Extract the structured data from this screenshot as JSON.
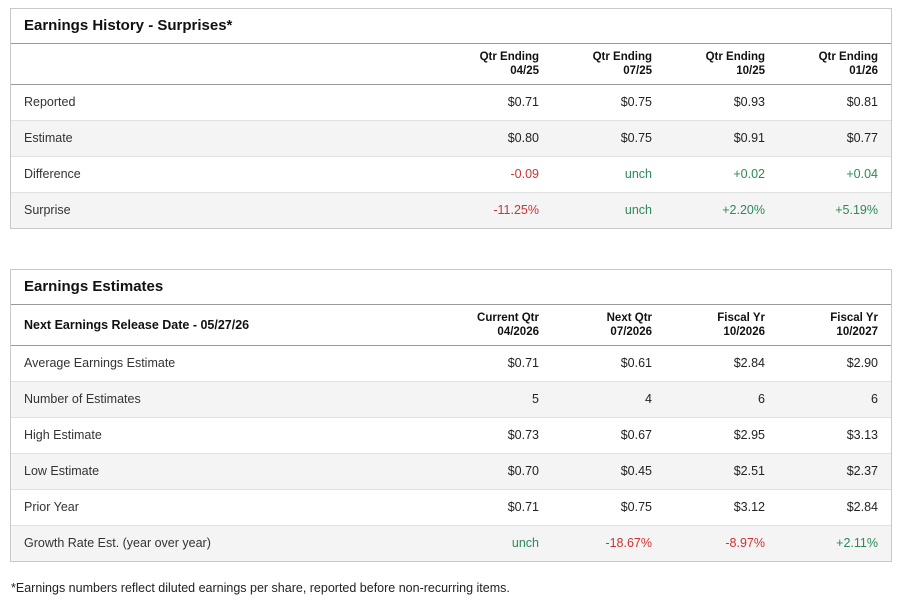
{
  "colors": {
    "positive": "#2e8857",
    "negative": "#cc3333"
  },
  "earnings_history": {
    "title": "Earnings History - Surprises*",
    "columns": [
      {
        "line1": "Qtr Ending",
        "line2": "04/25"
      },
      {
        "line1": "Qtr Ending",
        "line2": "07/25"
      },
      {
        "line1": "Qtr Ending",
        "line2": "10/25"
      },
      {
        "line1": "Qtr Ending",
        "line2": "01/26"
      }
    ],
    "rows": [
      {
        "label": "Reported",
        "values": [
          {
            "text": "$0.71",
            "trend": "none"
          },
          {
            "text": "$0.75",
            "trend": "none"
          },
          {
            "text": "$0.93",
            "trend": "none"
          },
          {
            "text": "$0.81",
            "trend": "none"
          }
        ]
      },
      {
        "label": "Estimate",
        "values": [
          {
            "text": "$0.80",
            "trend": "none"
          },
          {
            "text": "$0.75",
            "trend": "none"
          },
          {
            "text": "$0.91",
            "trend": "none"
          },
          {
            "text": "$0.77",
            "trend": "none"
          }
        ]
      },
      {
        "label": "Difference",
        "values": [
          {
            "text": "-0.09",
            "trend": "down"
          },
          {
            "text": "unch",
            "trend": "up"
          },
          {
            "text": "+0.02",
            "trend": "up"
          },
          {
            "text": "+0.04",
            "trend": "up"
          }
        ]
      },
      {
        "label": "Surprise",
        "values": [
          {
            "text": "-11.25%",
            "trend": "down"
          },
          {
            "text": "unch",
            "trend": "up"
          },
          {
            "text": "+2.20%",
            "trend": "up"
          },
          {
            "text": "+5.19%",
            "trend": "up"
          }
        ]
      }
    ]
  },
  "earnings_estimates": {
    "title": "Earnings Estimates",
    "release_date_label": "Next Earnings Release Date - 05/27/26",
    "columns": [
      {
        "line1": "Current Qtr",
        "line2": "04/2026"
      },
      {
        "line1": "Next Qtr",
        "line2": "07/2026"
      },
      {
        "line1": "Fiscal Yr",
        "line2": "10/2026"
      },
      {
        "line1": "Fiscal Yr",
        "line2": "10/2027"
      }
    ],
    "rows": [
      {
        "label": "Average Earnings Estimate",
        "values": [
          {
            "text": "$0.71",
            "trend": "none"
          },
          {
            "text": "$0.61",
            "trend": "none"
          },
          {
            "text": "$2.84",
            "trend": "none"
          },
          {
            "text": "$2.90",
            "trend": "none"
          }
        ]
      },
      {
        "label": "Number of Estimates",
        "values": [
          {
            "text": "5",
            "trend": "none"
          },
          {
            "text": "4",
            "trend": "none"
          },
          {
            "text": "6",
            "trend": "none"
          },
          {
            "text": "6",
            "trend": "none"
          }
        ]
      },
      {
        "label": "High Estimate",
        "values": [
          {
            "text": "$0.73",
            "trend": "none"
          },
          {
            "text": "$0.67",
            "trend": "none"
          },
          {
            "text": "$2.95",
            "trend": "none"
          },
          {
            "text": "$3.13",
            "trend": "none"
          }
        ]
      },
      {
        "label": "Low Estimate",
        "values": [
          {
            "text": "$0.70",
            "trend": "none"
          },
          {
            "text": "$0.45",
            "trend": "none"
          },
          {
            "text": "$2.51",
            "trend": "none"
          },
          {
            "text": "$2.37",
            "trend": "none"
          }
        ]
      },
      {
        "label": "Prior Year",
        "values": [
          {
            "text": "$0.71",
            "trend": "none"
          },
          {
            "text": "$0.75",
            "trend": "none"
          },
          {
            "text": "$3.12",
            "trend": "none"
          },
          {
            "text": "$2.84",
            "trend": "none"
          }
        ]
      },
      {
        "label": "Growth Rate Est. (year over year)",
        "values": [
          {
            "text": "unch",
            "trend": "up"
          },
          {
            "text": "-18.67%",
            "trend": "down"
          },
          {
            "text": "-8.97%",
            "trend": "down"
          },
          {
            "text": "+2.11%",
            "trend": "up"
          }
        ]
      }
    ]
  },
  "footnote": "*Earnings numbers reflect diluted earnings per share, reported before non-recurring items."
}
